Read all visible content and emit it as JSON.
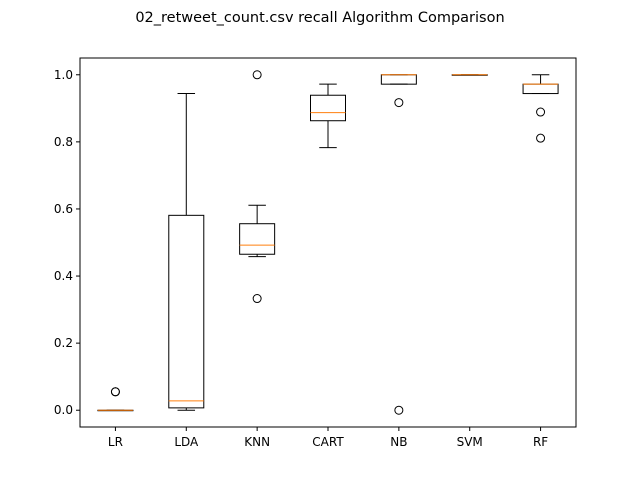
{
  "chart_data": {
    "type": "box",
    "title": "02_retweet_count.csv recall Algorithm Comparison",
    "xlabel": "",
    "ylabel": "",
    "ylim": [
      -0.05,
      1.05
    ],
    "yticks": [
      "0.0",
      "0.2",
      "0.4",
      "0.6",
      "0.8",
      "1.0"
    ],
    "grid": false,
    "box_color": "#000000",
    "median_color": "#ff7f0e",
    "categories": [
      "LR",
      "LDA",
      "KNN",
      "CART",
      "NB",
      "SVM",
      "RF"
    ],
    "boxes": [
      {
        "label": "LR",
        "whisker_low": 0.0,
        "q1": 0.0,
        "median": 0.0,
        "q3": 0.0,
        "whisker_high": 0.0,
        "outliers": [
          0.055,
          0.055
        ]
      },
      {
        "label": "LDA",
        "whisker_low": 0.0,
        "q1": 0.007,
        "median": 0.028,
        "q3": 0.581,
        "whisker_high": 0.944,
        "outliers": []
      },
      {
        "label": "KNN",
        "whisker_low": 0.458,
        "q1": 0.465,
        "median": 0.492,
        "q3": 0.556,
        "whisker_high": 0.611,
        "outliers": [
          1.0,
          0.333
        ]
      },
      {
        "label": "CART",
        "whisker_low": 0.783,
        "q1": 0.863,
        "median": 0.887,
        "q3": 0.939,
        "whisker_high": 0.972,
        "outliers": []
      },
      {
        "label": "NB",
        "whisker_low": 0.972,
        "q1": 0.972,
        "median": 1.0,
        "q3": 1.0,
        "whisker_high": 1.0,
        "outliers": [
          0.917,
          0.0
        ]
      },
      {
        "label": "SVM",
        "whisker_low": 1.0,
        "q1": 1.0,
        "median": 1.0,
        "q3": 1.0,
        "whisker_high": 1.0,
        "outliers": []
      },
      {
        "label": "RF",
        "whisker_low": 0.944,
        "q1": 0.944,
        "median": 0.972,
        "q3": 0.972,
        "whisker_high": 1.0,
        "outliers": [
          0.889,
          0.811
        ]
      }
    ]
  }
}
